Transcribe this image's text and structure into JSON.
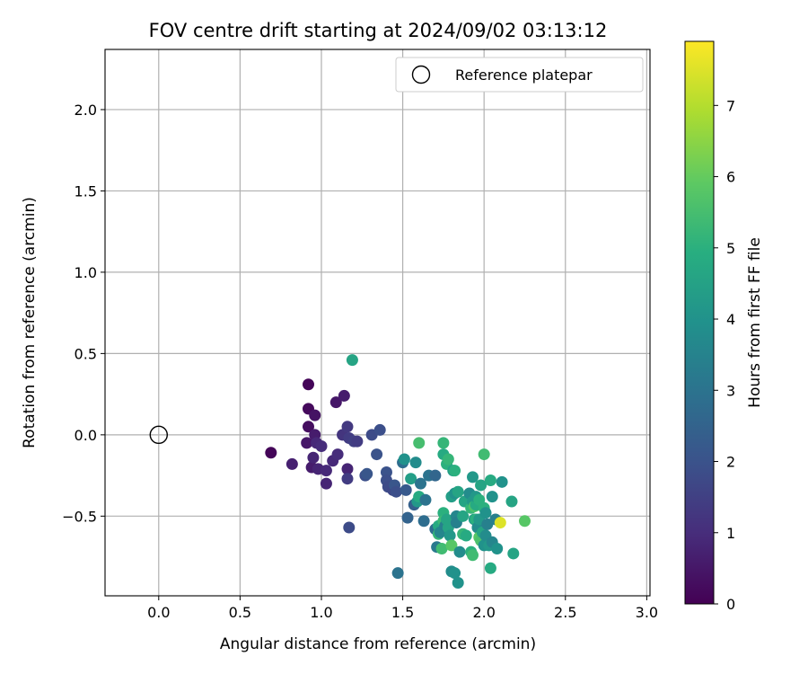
{
  "chart_data": {
    "type": "scatter",
    "title": "FOV centre drift starting at 2024/09/02 03:13:12",
    "xlabel": "Angular distance from reference (arcmin)",
    "ylabel": "Rotation from reference (arcmin)",
    "xlim": [
      -0.33,
      3.02
    ],
    "ylim": [
      -0.99,
      2.37
    ],
    "xticks": [
      "0.0",
      "0.5",
      "1.0",
      "1.5",
      "2.0",
      "2.5",
      "3.0"
    ],
    "yticks": [
      "2.0",
      "1.5",
      "1.0",
      "0.5",
      "0.0",
      "−0.5"
    ],
    "grid": true,
    "legend": {
      "label": "Reference platepar",
      "placement": "top-right",
      "point": [
        0.0,
        0.0
      ]
    },
    "colorbar": {
      "label": "Hours from first FF file",
      "colormap": "viridis",
      "range": [
        0,
        7.9
      ],
      "ticks": [
        "0",
        "1",
        "2",
        "3",
        "4",
        "5",
        "6",
        "7"
      ]
    },
    "points": [
      [
        0.69,
        -0.11,
        0.1
      ],
      [
        0.82,
        -0.18,
        0.7
      ],
      [
        0.91,
        -0.05,
        0.5
      ],
      [
        0.92,
        0.05,
        0.3
      ],
      [
        0.92,
        0.16,
        0.2
      ],
      [
        0.92,
        0.31,
        0.1
      ],
      [
        0.94,
        -0.2,
        0.6
      ],
      [
        0.95,
        -0.14,
        0.8
      ],
      [
        0.96,
        0.0,
        0.6
      ],
      [
        0.96,
        0.12,
        0.4
      ],
      [
        0.97,
        -0.05,
        0.9
      ],
      [
        0.98,
        -0.21,
        0.8
      ],
      [
        1.0,
        -0.07,
        1.0
      ],
      [
        1.03,
        -0.3,
        0.8
      ],
      [
        1.03,
        -0.22,
        0.9
      ],
      [
        1.07,
        -0.16,
        0.9
      ],
      [
        1.09,
        0.2,
        0.5
      ],
      [
        1.1,
        -0.12,
        1.0
      ],
      [
        1.13,
        0.0,
        1.2
      ],
      [
        1.14,
        0.24,
        0.6
      ],
      [
        1.16,
        0.05,
        1.3
      ],
      [
        1.16,
        -0.21,
        0.8
      ],
      [
        1.16,
        -0.27,
        1.4
      ],
      [
        1.17,
        -0.02,
        1.4
      ],
      [
        1.17,
        -0.57,
        1.8
      ],
      [
        1.2,
        -0.04,
        1.5
      ],
      [
        1.22,
        -0.04,
        1.4
      ],
      [
        1.19,
        0.46,
        4.6
      ],
      [
        1.27,
        -0.25,
        1.9
      ],
      [
        1.28,
        -0.24,
        2.1
      ],
      [
        1.31,
        0.0,
        1.8
      ],
      [
        1.34,
        -0.12,
        2.0
      ],
      [
        1.36,
        0.03,
        1.9
      ],
      [
        1.4,
        -0.23,
        2.0
      ],
      [
        1.4,
        -0.28,
        1.9
      ],
      [
        1.41,
        -0.32,
        1.8
      ],
      [
        1.44,
        -0.34,
        1.7
      ],
      [
        1.45,
        -0.31,
        2.1
      ],
      [
        1.46,
        -0.35,
        1.9
      ],
      [
        1.47,
        -0.85,
        3.0
      ],
      [
        1.5,
        -0.17,
        2.8
      ],
      [
        1.51,
        -0.15,
        4.0
      ],
      [
        1.52,
        -0.34,
        2.2
      ],
      [
        1.53,
        -0.51,
        2.5
      ],
      [
        1.55,
        -0.27,
        4.4
      ],
      [
        1.57,
        -0.43,
        2.4
      ],
      [
        1.58,
        -0.17,
        3.8
      ],
      [
        1.59,
        -0.41,
        4.2
      ],
      [
        1.6,
        -0.05,
        5.5
      ],
      [
        1.6,
        -0.38,
        4.8
      ],
      [
        1.61,
        -0.3,
        3.0
      ],
      [
        1.63,
        -0.53,
        2.8
      ],
      [
        1.64,
        -0.4,
        3.0
      ],
      [
        1.66,
        -0.25,
        3.0
      ],
      [
        1.7,
        -0.25,
        2.6
      ],
      [
        1.7,
        -0.58,
        2.8
      ],
      [
        1.71,
        -0.69,
        3.2
      ],
      [
        1.72,
        -0.61,
        5.2
      ],
      [
        1.72,
        -0.56,
        4.8
      ],
      [
        1.73,
        -0.6,
        3.6
      ],
      [
        1.74,
        -0.7,
        5.4
      ],
      [
        1.75,
        -0.48,
        5.0
      ],
      [
        1.75,
        -0.53,
        5.3
      ],
      [
        1.75,
        -0.05,
        5.2
      ],
      [
        1.75,
        -0.12,
        4.8
      ],
      [
        1.76,
        -0.56,
        3.4
      ],
      [
        1.77,
        -0.18,
        5.0
      ],
      [
        1.77,
        -0.52,
        4.6
      ],
      [
        1.78,
        -0.15,
        5.2
      ],
      [
        1.78,
        -0.57,
        4.6
      ],
      [
        1.79,
        -0.62,
        4.2
      ],
      [
        1.8,
        -0.84,
        3.8
      ],
      [
        1.8,
        -0.38,
        4.4
      ],
      [
        1.8,
        -0.68,
        5.8
      ],
      [
        1.81,
        -0.22,
        4.4
      ],
      [
        1.82,
        -0.85,
        4.0
      ],
      [
        1.82,
        -0.22,
        5.0
      ],
      [
        1.82,
        -0.36,
        4.0
      ],
      [
        1.83,
        -0.5,
        3.6
      ],
      [
        1.83,
        -0.54,
        3.4
      ],
      [
        1.84,
        -0.91,
        4.0
      ],
      [
        1.84,
        -0.35,
        4.6
      ],
      [
        1.85,
        -0.72,
        3.8
      ],
      [
        1.87,
        -0.61,
        5.2
      ],
      [
        1.87,
        -0.5,
        4.6
      ],
      [
        1.88,
        -0.41,
        4.6
      ],
      [
        1.89,
        -0.62,
        4.8
      ],
      [
        1.91,
        -0.36,
        3.8
      ],
      [
        1.92,
        -0.45,
        5.2
      ],
      [
        1.92,
        -0.72,
        5.0
      ],
      [
        1.93,
        -0.74,
        5.4
      ],
      [
        1.93,
        -0.41,
        4.2
      ],
      [
        1.93,
        -0.26,
        4.2
      ],
      [
        1.94,
        -0.52,
        4.4
      ],
      [
        1.94,
        -0.44,
        5.6
      ],
      [
        1.95,
        -0.43,
        4.8
      ],
      [
        1.95,
        -0.38,
        4.2
      ],
      [
        1.95,
        -0.52,
        5.0
      ],
      [
        1.96,
        -0.57,
        3.8
      ],
      [
        1.97,
        -0.4,
        5.0
      ],
      [
        1.97,
        -0.63,
        5.8
      ],
      [
        1.97,
        -0.52,
        4.2
      ],
      [
        1.98,
        -0.31,
        4.6
      ],
      [
        1.98,
        -0.65,
        5.6
      ],
      [
        1.99,
        -0.6,
        4.6
      ],
      [
        2.0,
        -0.45,
        5.0
      ],
      [
        2.0,
        -0.68,
        4.0
      ],
      [
        2.0,
        -0.12,
        5.4
      ],
      [
        2.01,
        -0.62,
        3.8
      ],
      [
        2.01,
        -0.48,
        4.0
      ],
      [
        2.02,
        -0.55,
        3.4
      ],
      [
        2.03,
        -0.68,
        4.2
      ],
      [
        2.04,
        -0.82,
        4.8
      ],
      [
        2.04,
        -0.28,
        4.8
      ],
      [
        2.05,
        -0.38,
        4.0
      ],
      [
        2.05,
        -0.66,
        3.6
      ],
      [
        2.07,
        -0.52,
        3.4
      ],
      [
        2.08,
        -0.7,
        4.0
      ],
      [
        2.1,
        -0.54,
        7.5
      ],
      [
        2.11,
        -0.29,
        4.0
      ],
      [
        2.17,
        -0.41,
        4.6
      ],
      [
        2.18,
        -0.73,
        4.6
      ],
      [
        2.25,
        -0.53,
        5.8
      ]
    ]
  }
}
